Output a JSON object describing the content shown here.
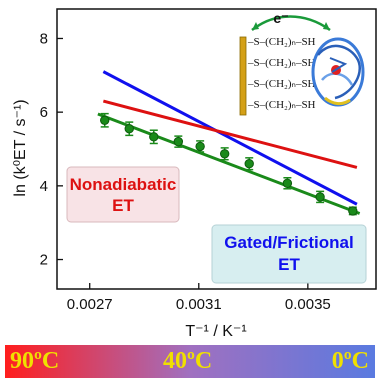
{
  "chart_data": {
    "type": "scatter",
    "xlabel": "T⁻¹ / K⁻¹",
    "ylabel": "ln (k⁰ET / s⁻¹)",
    "xlim": [
      0.00258,
      0.00375
    ],
    "ylim": [
      1.2,
      8.8
    ],
    "x_ticks": [
      {
        "value": 0.0027,
        "label": "0.0027"
      },
      {
        "value": 0.0031,
        "label": "0.0031"
      },
      {
        "value": 0.0035,
        "label": "0.0035"
      }
    ],
    "y_ticks": [
      {
        "value": 2,
        "label": "2"
      },
      {
        "value": 4,
        "label": "4"
      },
      {
        "value": 6,
        "label": "6"
      },
      {
        "value": 8,
        "label": "8"
      }
    ],
    "series": [
      {
        "color": "#1a8a1a",
        "marker": "circle",
        "points": [
          {
            "x": 0.002755,
            "y": 5.78,
            "err": 0.18
          },
          {
            "x": 0.002845,
            "y": 5.55,
            "err": 0.18
          },
          {
            "x": 0.002935,
            "y": 5.33,
            "err": 0.18
          },
          {
            "x": 0.003025,
            "y": 5.2,
            "err": 0.15
          },
          {
            "x": 0.003105,
            "y": 5.07,
            "err": 0.15
          },
          {
            "x": 0.003195,
            "y": 4.87,
            "err": 0.16
          },
          {
            "x": 0.003285,
            "y": 4.6,
            "err": 0.16
          },
          {
            "x": 0.003425,
            "y": 4.07,
            "err": 0.15
          },
          {
            "x": 0.003545,
            "y": 3.7,
            "err": 0.15
          },
          {
            "x": 0.003665,
            "y": 3.32,
            "err": 0.1
          }
        ]
      }
    ],
    "lines": [
      {
        "color": "#1a8a1a",
        "x": [
          0.00273,
          0.00369
        ],
        "y": [
          5.95,
          3.25
        ]
      },
      {
        "color": "#1010ee",
        "x": [
          0.00275,
          0.00368
        ],
        "y": [
          7.1,
          3.5
        ]
      },
      {
        "color": "#dd1111",
        "x": [
          0.00275,
          0.00368
        ],
        "y": [
          6.3,
          4.5
        ]
      }
    ],
    "annotations": {
      "nonadiabatic": [
        "Nonadiabatic",
        "ET"
      ],
      "gated": [
        "Gated/Frictional",
        "ET"
      ],
      "electron": "e⁻",
      "sam_rows": [
        "–S–(CH₂)ₙ–SH",
        "–S–(CH₂)ₙ–SH",
        "–S–(CH₂)ₙ–SH",
        "–S–(CH₂)ₙ–SH"
      ]
    }
  },
  "temperature_bar": {
    "labels": [
      "90ºC",
      "40ºC",
      "0ºC"
    ],
    "gradient": [
      "#ff1e1e",
      "#a070c0",
      "#5a7ae0"
    ],
    "label_color": "#f0e000"
  }
}
